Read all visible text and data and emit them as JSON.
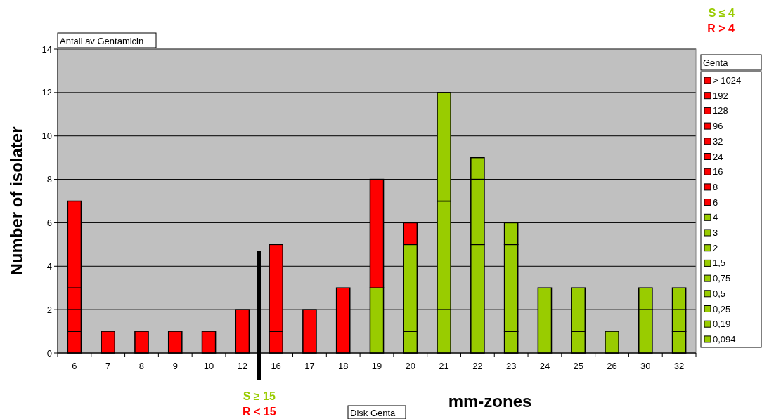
{
  "chart_data": {
    "type": "bar",
    "stacked": true,
    "title": "Antall av Gentamicin",
    "xlabel": "mm-zones",
    "ylabel": "Number of isolater",
    "legend_title": "Genta",
    "legend": "right",
    "categories": [
      "6",
      "7",
      "8",
      "9",
      "10",
      "12",
      "16",
      "17",
      "18",
      "19",
      "20",
      "21",
      "22",
      "23",
      "24",
      "25",
      "26",
      "30",
      "32"
    ],
    "ylim": [
      0,
      14
    ],
    "yticks": [
      0,
      2,
      4,
      6,
      8,
      10,
      12,
      14
    ],
    "grid": "y",
    "annotations": [
      "S ≤ 4",
      "R > 4",
      "S ≥ 15",
      "R < 15",
      "Disk Genta"
    ],
    "series": [
      {
        "name": "0,094",
        "color": "#99cc00",
        "values": [
          0,
          0,
          0,
          0,
          0,
          0,
          0,
          0,
          0,
          0,
          0,
          0,
          0,
          0,
          0,
          0,
          0,
          2,
          1
        ]
      },
      {
        "name": "0,19",
        "color": "#99cc00",
        "values": [
          0,
          0,
          0,
          0,
          0,
          0,
          0,
          0,
          0,
          0,
          0,
          0,
          0,
          0,
          0,
          1,
          0,
          1,
          1
        ]
      },
      {
        "name": "0,25",
        "color": "#99cc00",
        "values": [
          0,
          0,
          0,
          0,
          0,
          0,
          0,
          0,
          0,
          0,
          0,
          0,
          0,
          1,
          0,
          2,
          1,
          0,
          1
        ]
      },
      {
        "name": "0,5",
        "color": "#99cc00",
        "values": [
          0,
          0,
          0,
          0,
          0,
          0,
          0,
          0,
          0,
          0,
          0,
          2,
          0,
          4,
          3,
          0,
          0,
          0,
          0
        ]
      },
      {
        "name": "0,75",
        "color": "#99cc00",
        "values": [
          0,
          0,
          0,
          0,
          0,
          0,
          0,
          0,
          0,
          0,
          0,
          5,
          5,
          1,
          0,
          0,
          0,
          0,
          0
        ]
      },
      {
        "name": "1,5",
        "color": "#99cc00",
        "values": [
          0,
          0,
          0,
          0,
          0,
          0,
          0,
          0,
          0,
          0,
          0,
          5,
          3,
          0,
          0,
          0,
          0,
          0,
          0
        ]
      },
      {
        "name": "2",
        "color": "#99cc00",
        "values": [
          0,
          0,
          0,
          0,
          0,
          0,
          0,
          0,
          0,
          0,
          0,
          0,
          1,
          0,
          0,
          0,
          0,
          0,
          0
        ]
      },
      {
        "name": "3",
        "color": "#99cc00",
        "values": [
          0,
          0,
          0,
          0,
          0,
          0,
          0,
          0,
          0,
          0,
          1,
          0,
          0,
          0,
          0,
          0,
          0,
          0,
          0
        ]
      },
      {
        "name": "4",
        "color": "#99cc00",
        "values": [
          0,
          0,
          0,
          0,
          0,
          0,
          0,
          0,
          0,
          3,
          4,
          0,
          0,
          0,
          0,
          0,
          0,
          0,
          0
        ]
      },
      {
        "name": "6",
        "color": "#ff0000",
        "values": [
          0,
          0,
          0,
          0,
          0,
          0,
          0,
          0,
          3,
          5,
          1,
          0,
          0,
          0,
          0,
          0,
          0,
          0,
          0
        ]
      },
      {
        "name": "8",
        "color": "#ff0000",
        "values": [
          1,
          0,
          0,
          0,
          0,
          0,
          1,
          2,
          0,
          0,
          0,
          0,
          0,
          0,
          0,
          0,
          0,
          0,
          0
        ]
      },
      {
        "name": "16",
        "color": "#ff0000",
        "values": [
          1,
          1,
          0,
          1,
          0,
          2,
          4,
          0,
          0,
          0,
          0,
          0,
          0,
          0,
          0,
          0,
          0,
          0,
          0
        ]
      },
      {
        "name": "24",
        "color": "#ff0000",
        "values": [
          0,
          0,
          0,
          0,
          1,
          0,
          0,
          0,
          0,
          0,
          0,
          0,
          0,
          0,
          0,
          0,
          0,
          0,
          0
        ]
      },
      {
        "name": "32",
        "color": "#ff0000",
        "values": [
          1,
          0,
          1,
          0,
          0,
          0,
          0,
          0,
          0,
          0,
          0,
          0,
          0,
          0,
          0,
          0,
          0,
          0,
          0
        ]
      },
      {
        "name": "96",
        "color": "#ff0000",
        "values": [
          0,
          0,
          0,
          0,
          0,
          0,
          0,
          0,
          0,
          0,
          0,
          0,
          0,
          0,
          0,
          0,
          0,
          0,
          0
        ]
      },
      {
        "name": "128",
        "color": "#ff0000",
        "values": [
          0,
          0,
          0,
          0,
          0,
          0,
          0,
          0,
          0,
          0,
          0,
          0,
          0,
          0,
          0,
          0,
          0,
          0,
          0
        ]
      },
      {
        "name": "192",
        "color": "#ff0000",
        "values": [
          0,
          0,
          0,
          0,
          0,
          0,
          0,
          0,
          0,
          0,
          0,
          0,
          0,
          0,
          0,
          0,
          0,
          0,
          0
        ]
      },
      {
        "name": "> 1024",
        "color": "#ff0000",
        "values": [
          4,
          0,
          0,
          0,
          0,
          0,
          0,
          0,
          0,
          0,
          0,
          0,
          0,
          0,
          0,
          0,
          0,
          0,
          0
        ]
      }
    ]
  }
}
